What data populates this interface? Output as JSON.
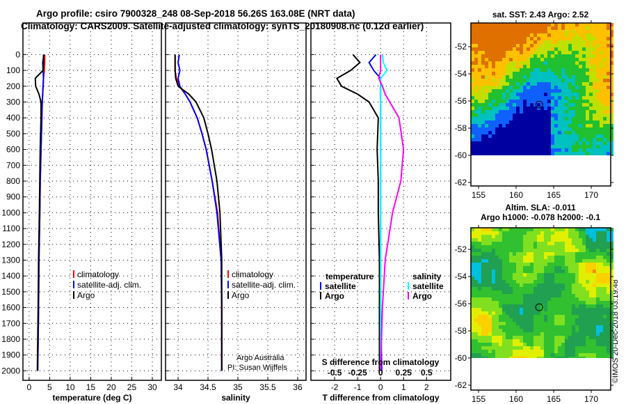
{
  "title_line1": "Argo profile: csiro 7900328_248 08-Sep-2018 56.26S 163.08E (NRT data)",
  "title_line2": "Climatology: CARS2009. Satellite-adjusted climatology: synTS_20180908.nc (0.12d earlier)",
  "credit": "Argo Australia",
  "pi": "PI: Susan Wijffels",
  "stamp": "©IMOS 20-Dec-2018 03:19:48",
  "colors": {
    "climatology": "#ff0000",
    "satellite": "#0000ff",
    "argo": "#000000",
    "sal_satellite": "#00ffff",
    "sal_argo": "#ff00ff"
  },
  "chart_data": [
    {
      "type": "line",
      "name": "temperature",
      "xlabel": "temperature (deg C)",
      "xlim": [
        -1.5,
        32.2
      ],
      "ylim": [
        -200,
        2060
      ],
      "xticks": [
        0,
        5,
        10,
        15,
        20,
        25,
        30
      ],
      "yticks": [
        0,
        100,
        200,
        300,
        400,
        500,
        600,
        700,
        800,
        900,
        1000,
        1100,
        1200,
        1300,
        1400,
        1500,
        1600,
        1700,
        1800,
        1900,
        2000
      ],
      "legend": [
        "climatology",
        "satellite-adj. clim.",
        "Argo"
      ],
      "depth": [
        0,
        50,
        100,
        150,
        200,
        250,
        300,
        400,
        600,
        800,
        1000,
        1300,
        1600,
        2000
      ],
      "series": [
        {
          "name": "climatology",
          "color": "#ff0000",
          "values": [
            3.8,
            3.8,
            3.7,
            3.5,
            3.4,
            3.3,
            3.2,
            3.1,
            2.9,
            2.7,
            2.6,
            2.4,
            2.3,
            2.1
          ]
        },
        {
          "name": "satellite-adj. clim.",
          "color": "#0000ff",
          "values": [
            3.6,
            3.3,
            3.4,
            3.5,
            3.4,
            3.3,
            3.2,
            3.1,
            2.9,
            2.7,
            2.6,
            2.4,
            2.3,
            2.1
          ]
        },
        {
          "name": "Argo",
          "color": "#000000",
          "values": [
            3.5,
            3.5,
            3.4,
            1.5,
            1.6,
            2.4,
            2.9,
            2.9,
            2.7,
            2.6,
            2.5,
            2.3,
            2.2,
            2.0
          ]
        }
      ]
    },
    {
      "type": "line",
      "name": "salinity",
      "xlabel": "salinity",
      "xlim": [
        33.79,
        36.14
      ],
      "ylim": [
        -200,
        2060
      ],
      "xticks": [
        34,
        34.5,
        35,
        35.5,
        36
      ],
      "legend": [
        "climatology",
        "satellite-adj. clim.",
        "Argo"
      ],
      "depth": [
        0,
        50,
        100,
        150,
        200,
        250,
        300,
        400,
        500,
        600,
        800,
        1000,
        1300,
        1600,
        2000
      ],
      "series": [
        {
          "name": "climatology",
          "color": "#ff0000",
          "values": [
            33.95,
            33.95,
            33.95,
            33.97,
            34.02,
            34.12,
            34.2,
            34.32,
            34.4,
            34.47,
            34.57,
            34.66,
            34.72,
            34.73,
            34.73
          ]
        },
        {
          "name": "satellite-adj. clim.",
          "color": "#0000ff",
          "values": [
            34.02,
            34.0,
            34.03,
            34.0,
            34.03,
            34.12,
            34.2,
            34.32,
            34.4,
            34.47,
            34.57,
            34.65,
            34.72,
            34.73,
            34.73
          ]
        },
        {
          "name": "Argo",
          "color": "#000000",
          "values": [
            33.95,
            33.95,
            33.95,
            33.96,
            34.0,
            34.18,
            34.3,
            34.43,
            34.5,
            34.56,
            34.65,
            34.7,
            34.73,
            34.73,
            34.73
          ]
        }
      ]
    },
    {
      "type": "line",
      "name": "difference",
      "xlabel": "T difference from climatology",
      "x2label": "S difference from climatology",
      "xlim": [
        -3.03,
        3.05
      ],
      "xticks": [
        -2,
        -1,
        0,
        1,
        2
      ],
      "x2ticks": [
        -0.5,
        -0.25,
        0,
        0.25,
        0.5
      ],
      "ylim": [
        -200,
        2060
      ],
      "legend_t": {
        "title": "temperature",
        "items": [
          "satellite",
          "Argo"
        ]
      },
      "legend_s": {
        "title": "salinity",
        "items": [
          "satellite",
          "Argo"
        ]
      },
      "depth": [
        0,
        50,
        100,
        150,
        200,
        250,
        300,
        400,
        600,
        800,
        1000,
        1300,
        1600,
        2000
      ],
      "series": [
        {
          "name": "T satellite",
          "axis": "T",
          "color": "#0000ff",
          "values": [
            -0.2,
            -0.5,
            -0.3,
            0.0,
            0.0,
            0.0,
            0.0,
            0.0,
            0.0,
            0.0,
            0.0,
            0.0,
            0.0,
            0.05
          ]
        },
        {
          "name": "T Argo",
          "axis": "T",
          "color": "#000000",
          "values": [
            -1.2,
            -0.9,
            -1.3,
            -1.9,
            -1.7,
            -1.0,
            -0.5,
            -0.1,
            -0.15,
            -0.1,
            -0.1,
            -0.05,
            -0.05,
            -0.05
          ]
        },
        {
          "name": "S satellite",
          "axis": "S",
          "color": "#00ffff",
          "values": [
            0.02,
            0.03,
            0.07,
            0.0,
            0.0,
            0.0,
            0.0,
            0.0,
            0.0,
            0.0,
            0.0,
            0.0,
            0.0,
            0.0
          ]
        },
        {
          "name": "S Argo",
          "axis": "S",
          "color": "#ff00ff",
          "values": [
            0.0,
            0.0,
            0.0,
            -0.02,
            0.02,
            0.05,
            0.1,
            0.2,
            0.25,
            0.22,
            0.13,
            0.05,
            0.02,
            0.0
          ]
        }
      ]
    }
  ],
  "maps": [
    {
      "title1": "sat. SST: 2.43 Argo: 2.52",
      "title2": "",
      "lat_ticks": [
        -52,
        -54,
        -56,
        -58,
        -60,
        -62
      ],
      "lon_ticks": [
        155,
        160,
        165,
        170
      ],
      "kind": "sst"
    },
    {
      "title1": "Altim. SLA: -0.011",
      "title2": "Argo h1000: -0.078 h2000: -0.1",
      "lat_ticks": [
        -52,
        -54,
        -56,
        -58,
        -60,
        -62
      ],
      "lon_ticks": [
        155,
        160,
        165,
        170
      ],
      "kind": "sla"
    }
  ],
  "profile_location": {
    "lat": -56.26,
    "lon": 163.08
  }
}
